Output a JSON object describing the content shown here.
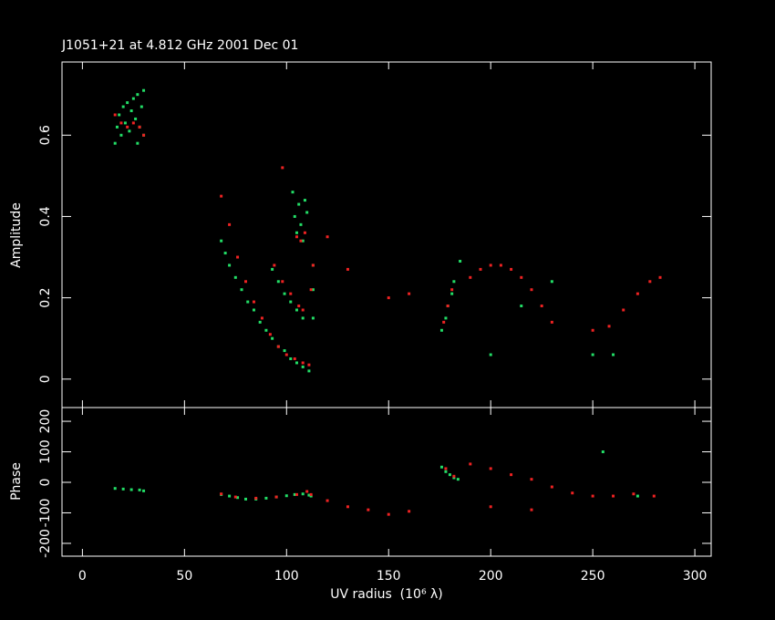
{
  "chart_data": [
    {
      "type": "scatter",
      "title": "J1051+21 at 4.812 GHz 2001 Dec 01",
      "ylabel": "Amplitude",
      "xlim": [
        -10,
        308
      ],
      "xticks": [
        0,
        50,
        100,
        150,
        200,
        250,
        300
      ],
      "ylim": [
        -0.07,
        0.78
      ],
      "yticks": [
        0,
        0.2,
        0.4,
        0.6
      ],
      "series": [
        {
          "color": "#22dd66",
          "x": [
            16,
            17,
            18,
            19,
            20,
            21,
            22,
            23,
            24,
            25,
            26,
            27,
            28,
            29,
            30,
            30,
            27,
            68,
            70,
            72,
            75,
            78,
            81,
            84,
            87,
            90,
            93,
            96,
            99,
            102,
            105,
            108,
            111,
            93,
            96,
            99,
            102,
            105,
            108,
            103,
            104,
            105,
            106,
            107,
            108,
            109,
            110,
            113,
            113,
            113,
            176,
            178,
            179,
            181,
            182,
            200,
            215,
            250,
            260,
            230,
            185
          ],
          "values": [
            0.58,
            0.62,
            0.65,
            0.6,
            0.67,
            0.63,
            0.68,
            0.61,
            0.66,
            0.69,
            0.64,
            0.7,
            0.62,
            0.67,
            0.71,
            0.6,
            0.58,
            0.34,
            0.31,
            0.28,
            0.25,
            0.22,
            0.19,
            0.17,
            0.14,
            0.12,
            0.1,
            0.08,
            0.07,
            0.05,
            0.04,
            0.03,
            0.02,
            0.27,
            0.24,
            0.21,
            0.19,
            0.17,
            0.15,
            0.46,
            0.4,
            0.36,
            0.43,
            0.38,
            0.34,
            0.44,
            0.41,
            0.15,
            0.22,
            0.28,
            0.12,
            0.15,
            0.18,
            0.21,
            0.24,
            0.06,
            0.18,
            0.06,
            0.06,
            0.24,
            0.29
          ]
        },
        {
          "color": "#ee2222",
          "x": [
            16,
            19,
            22,
            25,
            28,
            30,
            68,
            72,
            76,
            80,
            84,
            88,
            92,
            96,
            100,
            104,
            108,
            111,
            94,
            98,
            102,
            106,
            108,
            105,
            107,
            109,
            112,
            113,
            177,
            179,
            181,
            190,
            195,
            200,
            205,
            210,
            215,
            220,
            225,
            230,
            250,
            258,
            265,
            272,
            278,
            283,
            130,
            150,
            160,
            120,
            98
          ],
          "values": [
            0.65,
            0.63,
            0.62,
            0.63,
            0.62,
            0.6,
            0.45,
            0.38,
            0.3,
            0.24,
            0.19,
            0.15,
            0.11,
            0.08,
            0.06,
            0.05,
            0.04,
            0.035,
            0.28,
            0.24,
            0.21,
            0.18,
            0.17,
            0.35,
            0.34,
            0.36,
            0.22,
            0.28,
            0.14,
            0.18,
            0.22,
            0.25,
            0.27,
            0.28,
            0.28,
            0.27,
            0.25,
            0.22,
            0.18,
            0.14,
            0.12,
            0.13,
            0.17,
            0.21,
            0.24,
            0.25,
            0.27,
            0.2,
            0.21,
            0.35,
            0.52
          ]
        }
      ]
    },
    {
      "type": "scatter",
      "ylabel": "Phase",
      "xlabel": "UV radius  (10⁶ λ)",
      "xlim": [
        -10,
        308
      ],
      "xticks": [
        0,
        50,
        100,
        150,
        200,
        250,
        300
      ],
      "ylim": [
        -242,
        245
      ],
      "yticks": [
        -200,
        -100,
        0,
        100,
        200
      ],
      "series": [
        {
          "color": "#22dd66",
          "x": [
            16,
            20,
            24,
            28,
            30,
            68,
            72,
            76,
            80,
            85,
            90,
            95,
            100,
            104,
            108,
            111,
            112,
            176,
            178,
            180,
            182,
            184,
            255,
            272
          ],
          "values": [
            -20,
            -22,
            -24,
            -25,
            -28,
            -40,
            -45,
            -50,
            -55,
            -55,
            -52,
            -48,
            -44,
            -40,
            -38,
            -42,
            -45,
            50,
            35,
            25,
            15,
            10,
            100,
            -45
          ]
        },
        {
          "color": "#ee2222",
          "x": [
            68,
            75,
            85,
            95,
            105,
            110,
            112,
            120,
            130,
            140,
            150,
            160,
            178,
            182,
            190,
            200,
            210,
            220,
            230,
            240,
            250,
            260,
            270,
            280,
            200,
            220
          ],
          "values": [
            -38,
            -48,
            -52,
            -48,
            -40,
            -30,
            -40,
            -60,
            -80,
            -90,
            -105,
            -95,
            45,
            20,
            60,
            45,
            25,
            10,
            -15,
            -35,
            -45,
            -45,
            -38,
            -45,
            -80,
            -90
          ]
        }
      ]
    }
  ]
}
